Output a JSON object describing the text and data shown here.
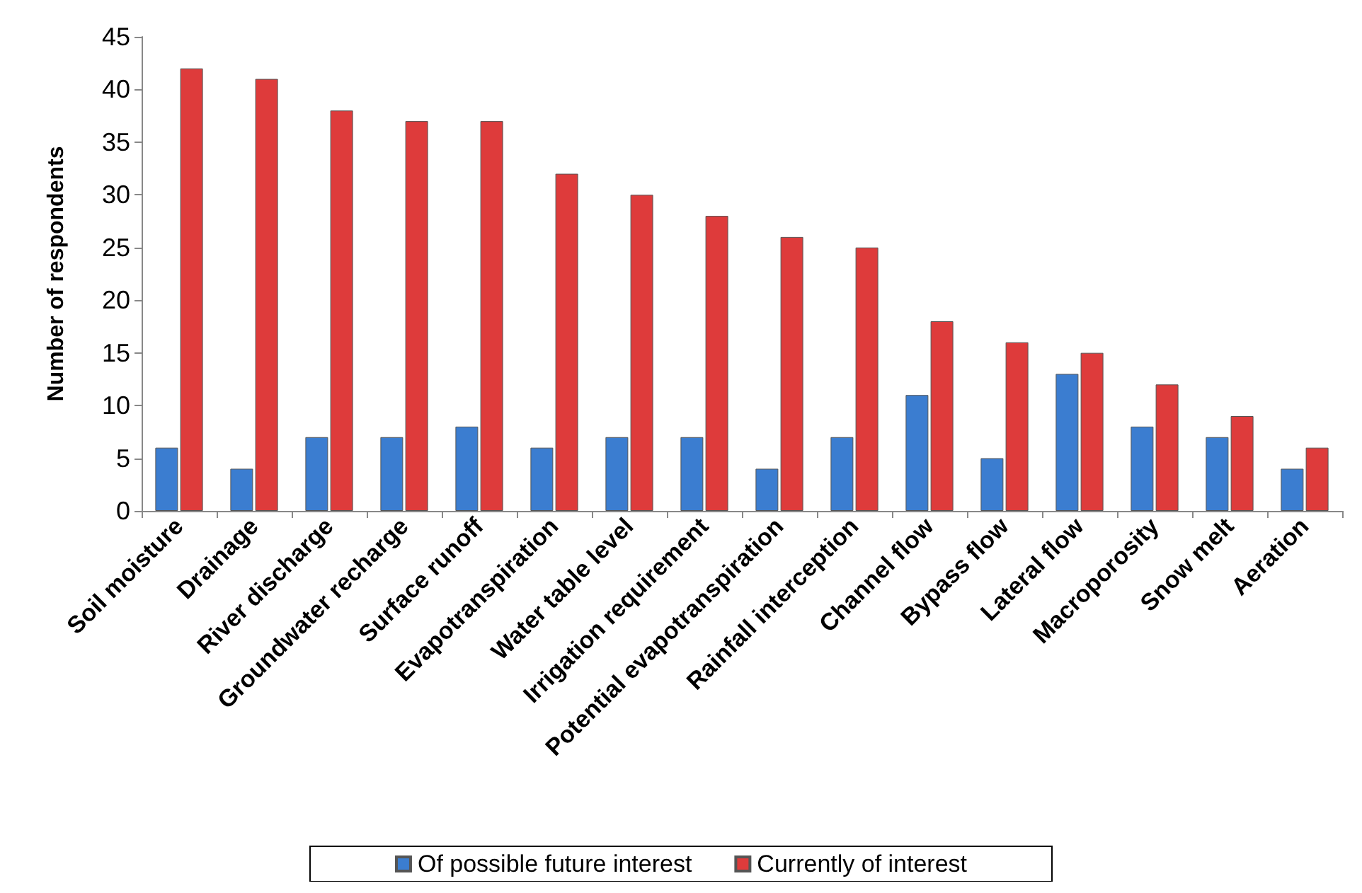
{
  "chart_data": {
    "type": "bar",
    "ylabel": "Number of respondents",
    "categories": [
      "Soil moisture",
      "Drainage",
      "River discharge",
      "Groundwater recharge",
      "Surface runoff",
      "Evapotranspiration",
      "Water table level",
      "Irrigation requirement",
      "Potential evapotranspiration",
      "Rainfall interception",
      "Channel flow",
      "Bypass flow",
      "Lateral flow",
      "Macroporosity",
      "Snow melt",
      "Aeration"
    ],
    "series": [
      {
        "name": "Of possible future interest",
        "color": "#3b7dd0",
        "values": [
          6,
          4,
          7,
          7,
          8,
          6,
          7,
          7,
          4,
          7,
          11,
          5,
          13,
          8,
          7,
          4
        ]
      },
      {
        "name": "Currently of interest",
        "color": "#de3b3b",
        "values": [
          42,
          41,
          38,
          37,
          37,
          32,
          30,
          28,
          26,
          25,
          18,
          16,
          15,
          12,
          9,
          6
        ]
      }
    ],
    "ylim": [
      0,
      45
    ],
    "yticks": [
      0,
      5,
      10,
      15,
      20,
      25,
      30,
      35,
      40,
      45
    ],
    "grid": false,
    "legend": "bottom"
  }
}
